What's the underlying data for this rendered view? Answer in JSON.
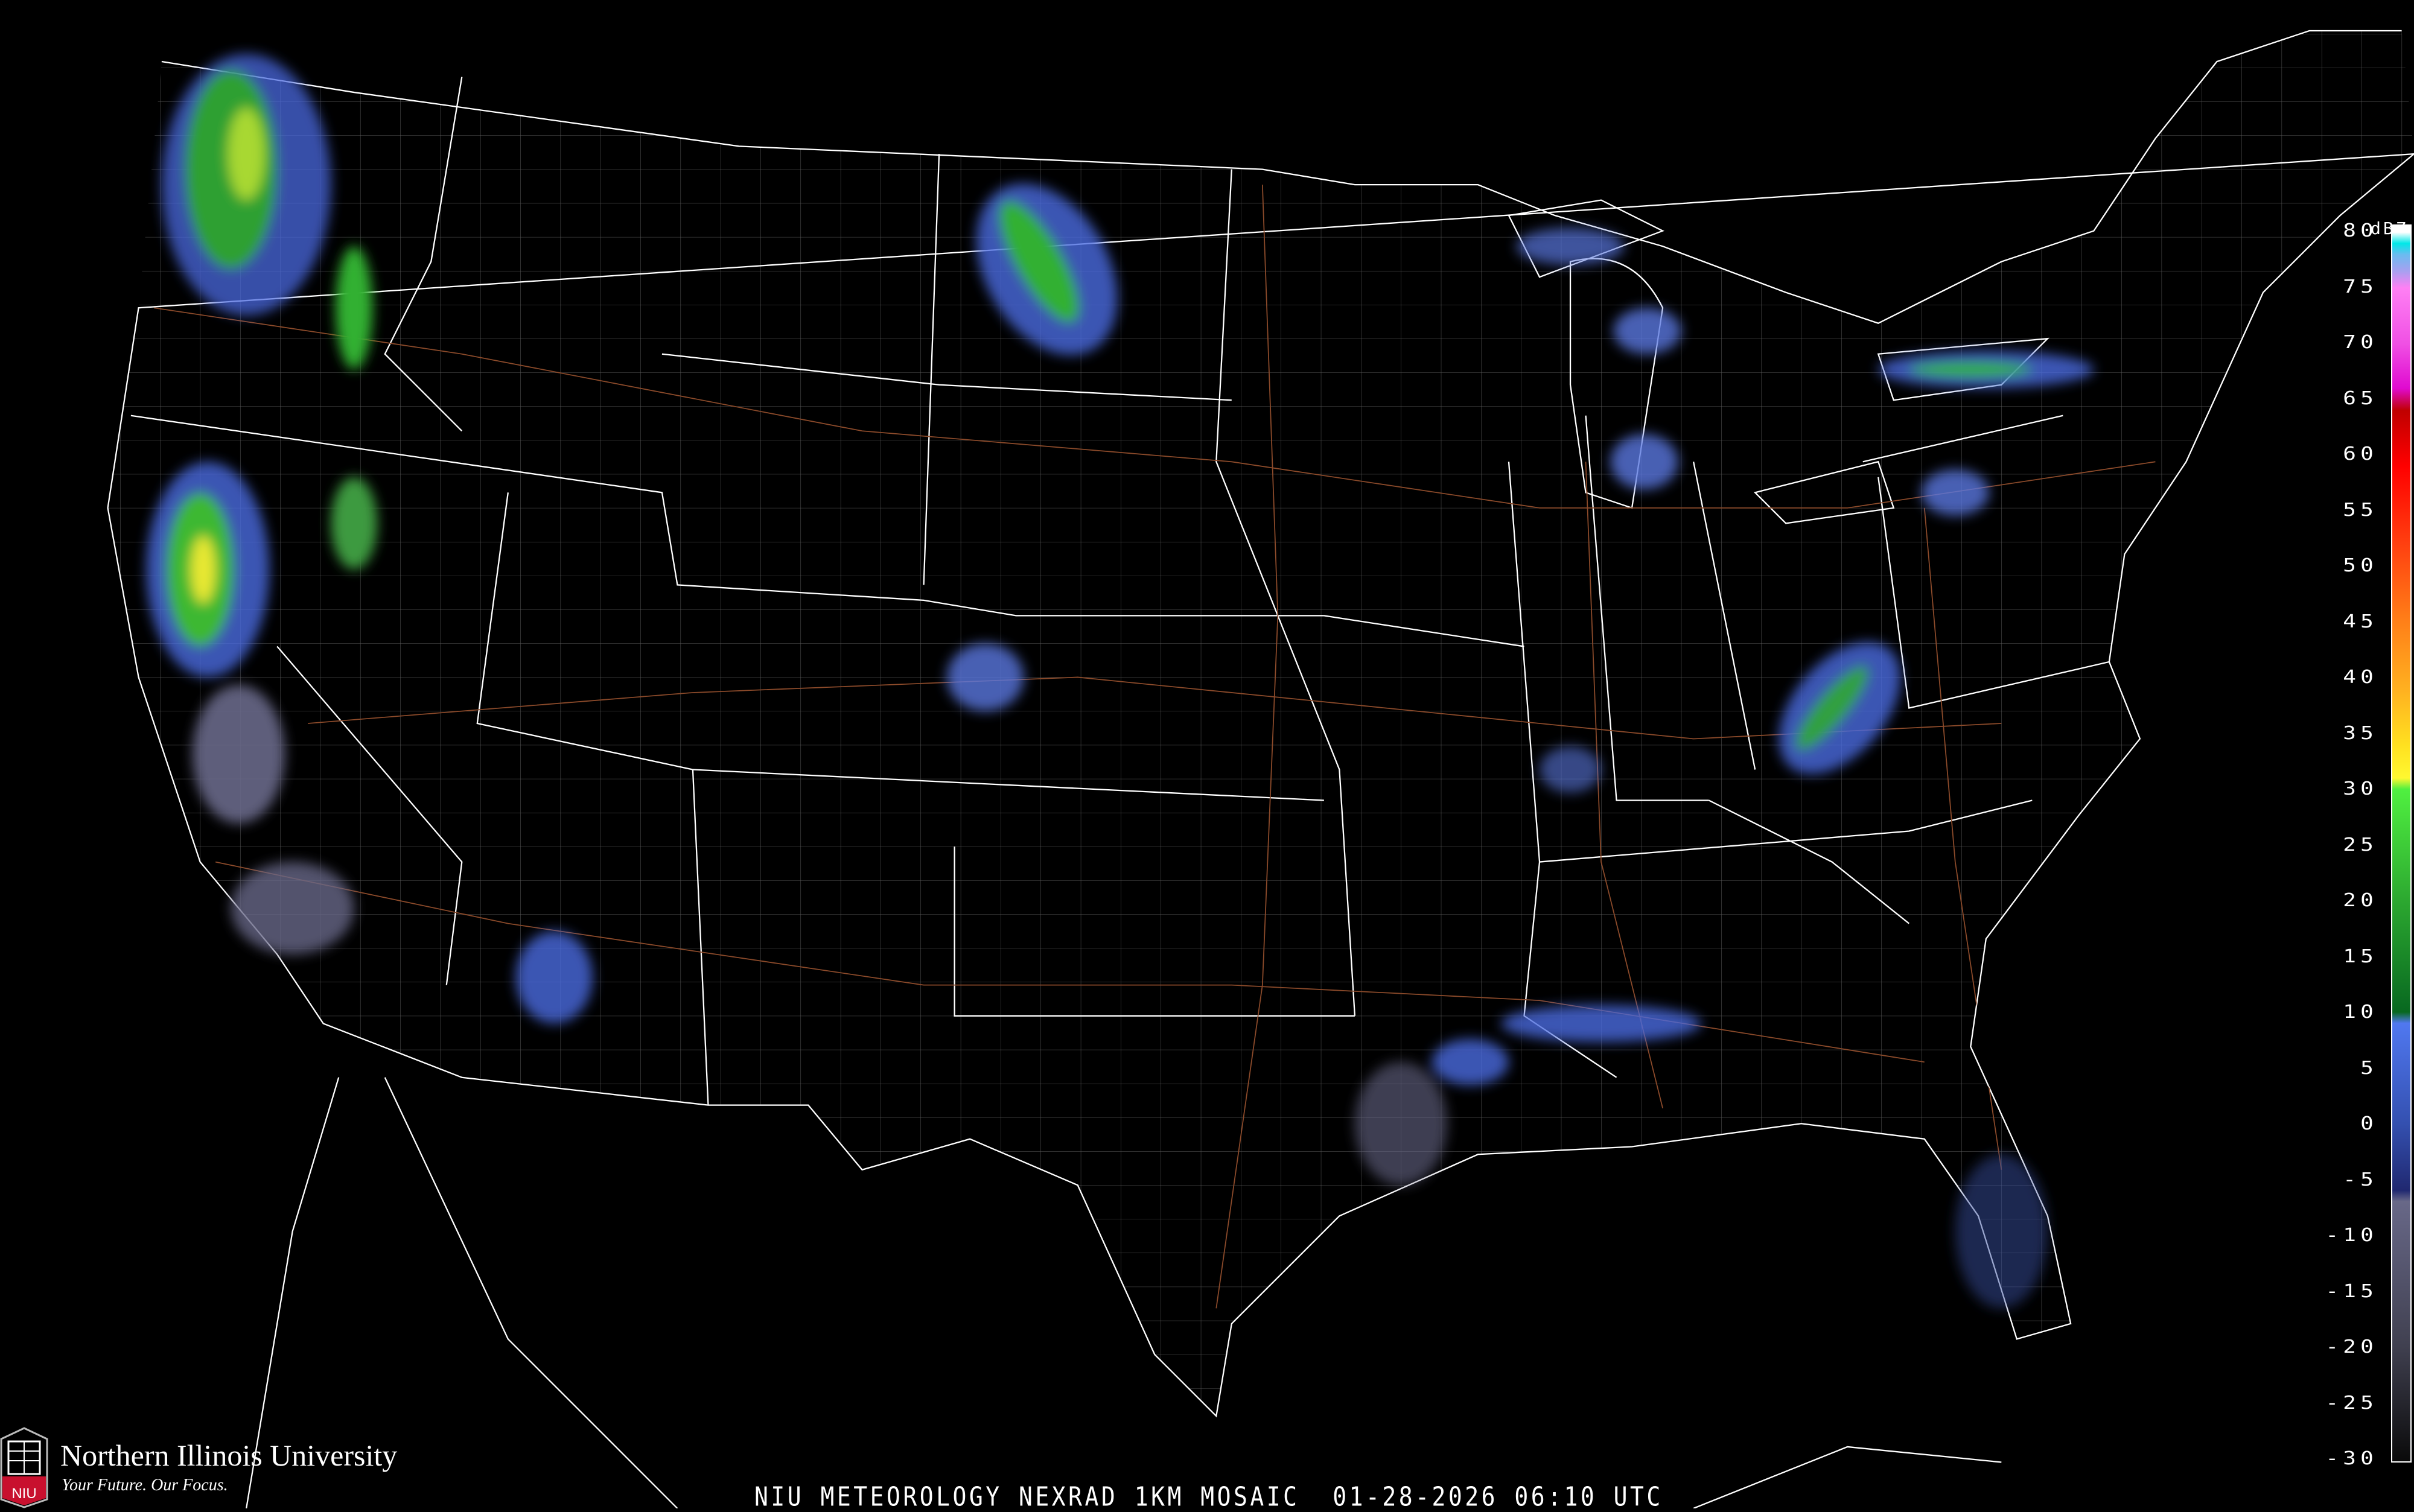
{
  "map": {
    "title": "NIU METEOROLOGY NEXRAD 1KM MOSAIC  01-28-2026 06:10 UTC",
    "background_color": "#000000",
    "boundary_color": "#ffffff",
    "county_color": "#8a8a8a",
    "highway_color": "#8b4a2a"
  },
  "legend": {
    "unit": "dBZ",
    "labels": [
      "80",
      "75",
      "70",
      "65",
      "60",
      "55",
      "50",
      "45",
      "40",
      "35",
      "30",
      "25",
      "20",
      "15",
      "10",
      "5",
      "0",
      "-5",
      "-10",
      "-15",
      "-20",
      "-25",
      "-30"
    ],
    "stops": [
      {
        "dbz": 80,
        "color": "#ffffff"
      },
      {
        "dbz": 79,
        "color": "#00e8e8"
      },
      {
        "dbz": 78,
        "color": "#6abcf0"
      },
      {
        "dbz": 76.5,
        "color": "#a8a0f0"
      },
      {
        "dbz": 75,
        "color": "#ff80f4"
      },
      {
        "dbz": 70,
        "color": "#f050e4"
      },
      {
        "dbz": 66,
        "color": "#e00ad0"
      },
      {
        "dbz": 64,
        "color": "#c00000"
      },
      {
        "dbz": 59,
        "color": "#ff0000"
      },
      {
        "dbz": 52,
        "color": "#ff4010"
      },
      {
        "dbz": 45,
        "color": "#ff8018"
      },
      {
        "dbz": 39,
        "color": "#ffb020"
      },
      {
        "dbz": 34,
        "color": "#ffe020"
      },
      {
        "dbz": 31,
        "color": "#fff830"
      },
      {
        "dbz": 30,
        "color": "#50f040"
      },
      {
        "dbz": 20,
        "color": "#2ca830"
      },
      {
        "dbz": 10,
        "color": "#086820"
      },
      {
        "dbz": 9,
        "color": "#5078f0"
      },
      {
        "dbz": 0,
        "color": "#3450b0"
      },
      {
        "dbz": -6,
        "color": "#202870"
      },
      {
        "dbz": -7,
        "color": "#686888"
      },
      {
        "dbz": -20,
        "color": "#404050"
      },
      {
        "dbz": -32,
        "color": "#0a0a0a"
      }
    ]
  },
  "logo": {
    "name": "Northern Illinois University",
    "tagline": "Your Future. Our Focus.",
    "mark_text": "NIU",
    "brand_color": "#c8102e"
  }
}
